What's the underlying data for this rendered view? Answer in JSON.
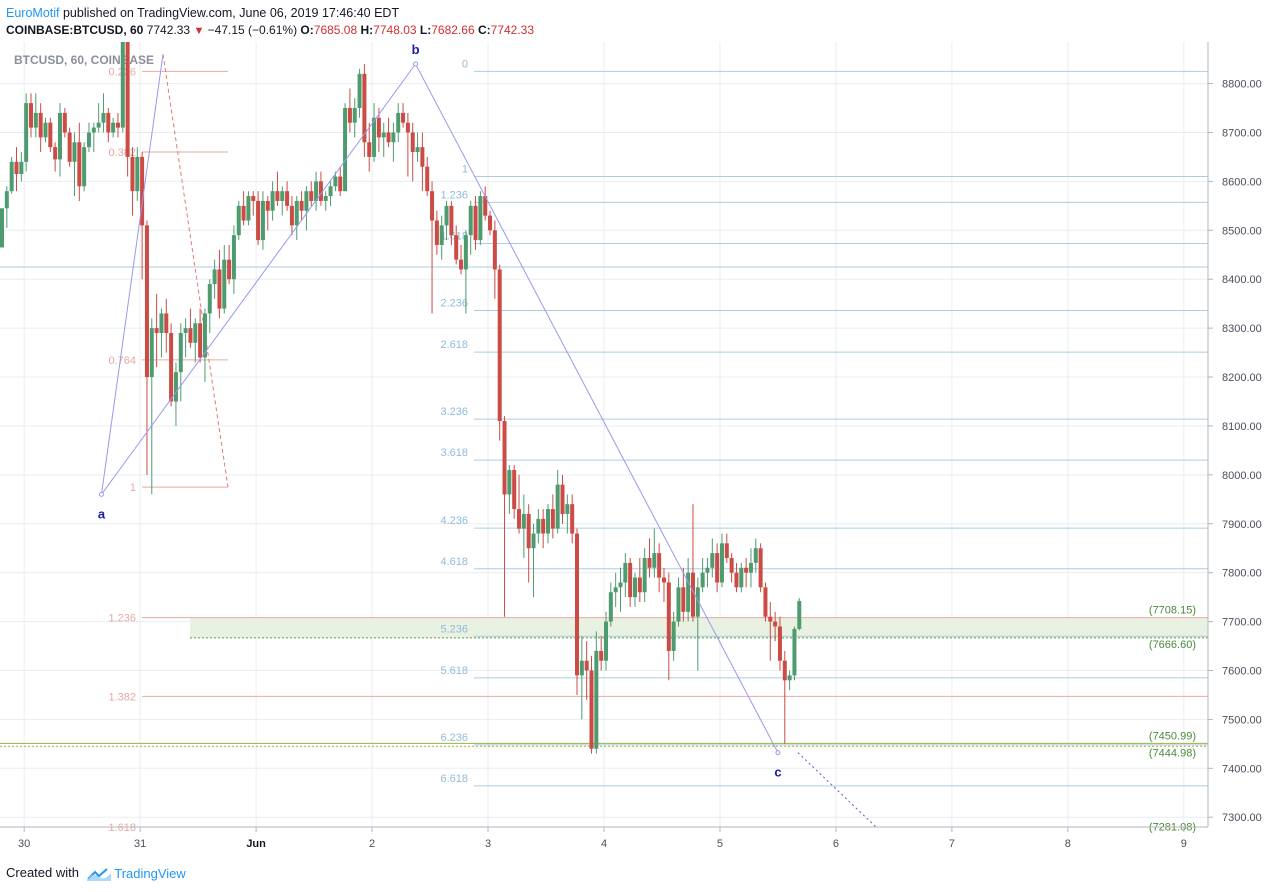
{
  "header": {
    "brand": "EuroMotif",
    "published": " published on TradingView.com, June 06, 2019 17:46:40 EDT",
    "symbol": "COINBASE:BTCUSD, 60",
    "last": "7742.33",
    "change": "−47.15 (−0.61%)",
    "open_label": "O:",
    "open": "7685.08",
    "high_label": "H:",
    "high": "7748.03",
    "low_label": "L:",
    "low": "7682.66",
    "close_label": "C:",
    "close": "7742.33",
    "down_arrow_icon": "triangle-down-icon"
  },
  "footer": {
    "created_with": "Created with",
    "brand": "TradingView",
    "logo_icon": "tradingview-logo-icon"
  },
  "colors": {
    "up": "#4f9b70",
    "down": "#cc4b44",
    "grid": "#e8edf2",
    "fib_blue": "#aecde0",
    "fib_red": "#e8a9a6",
    "wave": "#9999ee",
    "zone": "#e9f1e2",
    "zone_border": "#5e9c4f",
    "green_line": "#9bb33a",
    "label_blue": "#2196f3"
  },
  "chart_data": {
    "type": "candlestick",
    "watermark": "BTCUSD, 60, COINBASE",
    "price_axis": {
      "ticks": [
        "8800.00",
        "8700.00",
        "8600.00",
        "8500.00",
        "8400.00",
        "8300.00",
        "8200.00",
        "8100.00",
        "8000.00",
        "7900.00",
        "7800.00",
        "7700.00",
        "7600.00",
        "7500.00",
        "7400.00",
        "7300.00"
      ],
      "range": [
        7280,
        8885
      ]
    },
    "time_axis": {
      "ticks": [
        "30",
        "31",
        "Jun",
        "2",
        "3",
        "4",
        "5",
        "6",
        "7",
        "8",
        "9"
      ],
      "range": [
        "2019-05-29T19:00",
        "2019-06-09T05:00"
      ]
    },
    "price_labels": [
      "(7708.15)",
      "(7666.60)",
      "(7450.99)",
      "(7444.98)",
      "(7281.08)"
    ],
    "fib_extension_red": {
      "levels": [
        {
          "label": "0.236",
          "price": 8825
        },
        {
          "label": "0.382",
          "price": 8660
        },
        {
          "label": "0.764",
          "price": 8235
        },
        {
          "label": "1",
          "price": 7975
        },
        {
          "label": "1.236",
          "price": 7708
        },
        {
          "label": "1.382",
          "price": 7547
        },
        {
          "label": "1.618",
          "price": 7280
        }
      ]
    },
    "fib_extension_blue": {
      "levels": [
        {
          "label": "0",
          "price": 8825
        },
        {
          "label": "1",
          "price": 8610
        },
        {
          "label": "1.236",
          "price": 8557
        },
        {
          "label": "1.618",
          "price": 8473
        },
        {
          "label": "2.236",
          "price": 8336
        },
        {
          "label": "2.618",
          "price": 8251
        },
        {
          "label": "3.236",
          "price": 8114
        },
        {
          "label": "3.618",
          "price": 8030
        },
        {
          "label": "4.236",
          "price": 7891
        },
        {
          "label": "4.618",
          "price": 7808
        },
        {
          "label": "5.236",
          "price": 7670
        },
        {
          "label": "5.618",
          "price": 7585
        },
        {
          "label": "6.236",
          "price": 7448
        },
        {
          "label": "6.618",
          "price": 7364
        }
      ]
    },
    "horizontal_line_price": 8425,
    "zone": {
      "top": 7708.15,
      "bottom": 7666.6
    },
    "green_lines": [
      7450.99,
      7444.98
    ],
    "waves": [
      {
        "label": "a",
        "time": "2019-05-30T16:00",
        "price": 7960
      },
      {
        "label": "b",
        "time": "2019-06-02T09:00",
        "price": 8840
      },
      {
        "label": "c",
        "time": "2019-06-05T12:00",
        "price": 7432
      }
    ],
    "candles": [
      [
        8465,
        8545,
        8465,
        8545
      ],
      [
        8545,
        8590,
        8505,
        8580
      ],
      [
        8580,
        8650,
        8575,
        8640
      ],
      [
        8640,
        8670,
        8580,
        8615
      ],
      [
        8615,
        8660,
        8600,
        8640
      ],
      [
        8640,
        8780,
        8620,
        8760
      ],
      [
        8760,
        8780,
        8690,
        8710
      ],
      [
        8710,
        8780,
        8690,
        8740
      ],
      [
        8740,
        8760,
        8660,
        8690
      ],
      [
        8690,
        8730,
        8680,
        8720
      ],
      [
        8720,
        8730,
        8660,
        8670
      ],
      [
        8670,
        8680,
        8620,
        8645
      ],
      [
        8645,
        8760,
        8610,
        8740
      ],
      [
        8740,
        8750,
        8690,
        8700
      ],
      [
        8700,
        8710,
        8630,
        8640
      ],
      [
        8640,
        8700,
        8570,
        8680
      ],
      [
        8680,
        8720,
        8560,
        8590
      ],
      [
        8590,
        8680,
        8580,
        8670
      ],
      [
        8670,
        8720,
        8660,
        8700
      ],
      [
        8700,
        8720,
        8660,
        8710
      ],
      [
        8710,
        8760,
        8700,
        8720
      ],
      [
        8720,
        8780,
        8700,
        8740
      ],
      [
        8740,
        8750,
        8680,
        8700
      ],
      [
        8700,
        8730,
        8690,
        8720
      ],
      [
        8720,
        8740,
        8690,
        8710
      ],
      [
        8710,
        8900,
        8700,
        8890
      ],
      [
        8890,
        8900,
        8610,
        8650
      ],
      [
        8650,
        8670,
        8530,
        8580
      ],
      [
        8580,
        8670,
        8560,
        8650
      ],
      [
        8650,
        8660,
        8400,
        8510
      ],
      [
        8510,
        8520,
        8000,
        8200
      ],
      [
        8200,
        8320,
        7960,
        8300
      ],
      [
        8300,
        8370,
        8220,
        8290
      ],
      [
        8290,
        8340,
        8240,
        8330
      ],
      [
        8330,
        8360,
        8250,
        8290
      ],
      [
        8290,
        8310,
        8140,
        8150
      ],
      [
        8150,
        8230,
        8100,
        8210
      ],
      [
        8210,
        8310,
        8150,
        8290
      ],
      [
        8290,
        8320,
        8240,
        8300
      ],
      [
        8300,
        8340,
        8260,
        8270
      ],
      [
        8270,
        8320,
        8230,
        8310
      ],
      [
        8310,
        8340,
        8230,
        8240
      ],
      [
        8240,
        8340,
        8190,
        8330
      ],
      [
        8330,
        8400,
        8290,
        8390
      ],
      [
        8390,
        8440,
        8360,
        8420
      ],
      [
        8420,
        8460,
        8320,
        8340
      ],
      [
        8340,
        8470,
        8330,
        8440
      ],
      [
        8440,
        8470,
        8390,
        8400
      ],
      [
        8400,
        8510,
        8370,
        8490
      ],
      [
        8490,
        8560,
        8480,
        8550
      ],
      [
        8550,
        8580,
        8510,
        8520
      ],
      [
        8520,
        8580,
        8510,
        8570
      ],
      [
        8570,
        8580,
        8530,
        8560
      ],
      [
        8560,
        8580,
        8470,
        8480
      ],
      [
        8480,
        8580,
        8460,
        8560
      ],
      [
        8560,
        8570,
        8500,
        8540
      ],
      [
        8540,
        8600,
        8520,
        8580
      ],
      [
        8580,
        8620,
        8550,
        8560
      ],
      [
        8560,
        8590,
        8530,
        8580
      ],
      [
        8580,
        8600,
        8540,
        8550
      ],
      [
        8550,
        8570,
        8490,
        8510
      ],
      [
        8510,
        8570,
        8480,
        8560
      ],
      [
        8560,
        8580,
        8520,
        8540
      ],
      [
        8540,
        8590,
        8500,
        8580
      ],
      [
        8580,
        8600,
        8550,
        8560
      ],
      [
        8560,
        8620,
        8540,
        8600
      ],
      [
        8600,
        8620,
        8550,
        8560
      ],
      [
        8560,
        8580,
        8540,
        8570
      ],
      [
        8570,
        8600,
        8550,
        8590
      ],
      [
        8590,
        8620,
        8580,
        8610
      ],
      [
        8610,
        8630,
        8570,
        8580
      ],
      [
        8580,
        8760,
        8580,
        8750
      ],
      [
        8750,
        8790,
        8700,
        8720
      ],
      [
        8720,
        8770,
        8690,
        8750
      ],
      [
        8750,
        8830,
        8730,
        8820
      ],
      [
        8820,
        8840,
        8650,
        8680
      ],
      [
        8680,
        8720,
        8620,
        8650
      ],
      [
        8650,
        8760,
        8640,
        8730
      ],
      [
        8730,
        8750,
        8660,
        8690
      ],
      [
        8690,
        8720,
        8650,
        8700
      ],
      [
        8700,
        8730,
        8670,
        8680
      ],
      [
        8680,
        8720,
        8640,
        8700
      ],
      [
        8700,
        8760,
        8680,
        8740
      ],
      [
        8740,
        8760,
        8710,
        8720
      ],
      [
        8720,
        8740,
        8610,
        8700
      ],
      [
        8700,
        8720,
        8600,
        8660
      ],
      [
        8660,
        8700,
        8640,
        8670
      ],
      [
        8670,
        8700,
        8580,
        8630
      ],
      [
        8630,
        8650,
        8570,
        8580
      ],
      [
        8580,
        8600,
        8330,
        8520
      ],
      [
        8520,
        8540,
        8450,
        8470
      ],
      [
        8470,
        8530,
        8440,
        8510
      ],
      [
        8510,
        8560,
        8480,
        8550
      ],
      [
        8550,
        8560,
        8470,
        8490
      ],
      [
        8490,
        8510,
        8430,
        8440
      ],
      [
        8440,
        8470,
        8410,
        8420
      ],
      [
        8420,
        8500,
        8330,
        8490
      ],
      [
        8490,
        8560,
        8450,
        8550
      ],
      [
        8550,
        8570,
        8460,
        8480
      ],
      [
        8480,
        8580,
        8470,
        8570
      ],
      [
        8570,
        8590,
        8520,
        8530
      ],
      [
        8530,
        8540,
        8490,
        8500
      ],
      [
        8500,
        8520,
        8360,
        8420
      ],
      [
        8420,
        8430,
        8070,
        8110
      ],
      [
        8110,
        8120,
        7710,
        7960
      ],
      [
        7960,
        8020,
        7920,
        8010
      ],
      [
        8010,
        8020,
        7910,
        7930
      ],
      [
        7930,
        8000,
        7880,
        7890
      ],
      [
        7890,
        7960,
        7830,
        7920
      ],
      [
        7920,
        7940,
        7780,
        7850
      ],
      [
        7850,
        7900,
        7750,
        7880
      ],
      [
        7880,
        7930,
        7860,
        7910
      ],
      [
        7910,
        7930,
        7850,
        7880
      ],
      [
        7880,
        7940,
        7860,
        7930
      ],
      [
        7930,
        7960,
        7870,
        7890
      ],
      [
        7890,
        8010,
        7880,
        7980
      ],
      [
        7980,
        8000,
        7900,
        7920
      ],
      [
        7920,
        7960,
        7880,
        7940
      ],
      [
        7940,
        7960,
        7860,
        7880
      ],
      [
        7880,
        7890,
        7550,
        7590
      ],
      [
        7590,
        7670,
        7500,
        7620
      ],
      [
        7620,
        7660,
        7540,
        7600
      ],
      [
        7600,
        7630,
        7430,
        7440
      ],
      [
        7440,
        7680,
        7430,
        7640
      ],
      [
        7640,
        7670,
        7600,
        7620
      ],
      [
        7620,
        7720,
        7600,
        7700
      ],
      [
        7700,
        7780,
        7690,
        7760
      ],
      [
        7760,
        7800,
        7730,
        7770
      ],
      [
        7770,
        7810,
        7720,
        7780
      ],
      [
        7780,
        7840,
        7750,
        7820
      ],
      [
        7820,
        7830,
        7730,
        7750
      ],
      [
        7750,
        7800,
        7730,
        7790
      ],
      [
        7790,
        7830,
        7740,
        7760
      ],
      [
        7760,
        7850,
        7740,
        7830
      ],
      [
        7830,
        7870,
        7790,
        7810
      ],
      [
        7810,
        7890,
        7790,
        7840
      ],
      [
        7840,
        7860,
        7760,
        7790
      ],
      [
        7790,
        7810,
        7740,
        7780
      ],
      [
        7780,
        7800,
        7580,
        7640
      ],
      [
        7640,
        7720,
        7620,
        7700
      ],
      [
        7700,
        7790,
        7690,
        7770
      ],
      [
        7770,
        7810,
        7700,
        7720
      ],
      [
        7720,
        7830,
        7700,
        7800
      ],
      [
        7800,
        7940,
        7700,
        7710
      ],
      [
        7710,
        7790,
        7600,
        7770
      ],
      [
        7770,
        7830,
        7760,
        7800
      ],
      [
        7800,
        7830,
        7770,
        7810
      ],
      [
        7810,
        7870,
        7790,
        7840
      ],
      [
        7840,
        7860,
        7760,
        7780
      ],
      [
        7780,
        7880,
        7770,
        7860
      ],
      [
        7860,
        7880,
        7820,
        7830
      ],
      [
        7830,
        7840,
        7780,
        7800
      ],
      [
        7800,
        7820,
        7760,
        7770
      ],
      [
        7770,
        7820,
        7760,
        7810
      ],
      [
        7810,
        7830,
        7770,
        7800
      ],
      [
        7800,
        7850,
        7770,
        7820
      ],
      [
        7820,
        7870,
        7800,
        7850
      ],
      [
        7850,
        7860,
        7760,
        7770
      ],
      [
        7770,
        7780,
        7700,
        7710
      ],
      [
        7710,
        7740,
        7620,
        7700
      ],
      [
        7700,
        7720,
        7660,
        7690
      ],
      [
        7690,
        7710,
        7600,
        7620
      ],
      [
        7620,
        7640,
        7450,
        7580
      ],
      [
        7580,
        7600,
        7560,
        7590
      ],
      [
        7590,
        7690,
        7580,
        7685
      ],
      [
        7685,
        7748,
        7682,
        7742
      ]
    ],
    "candles_format": "[open, high, low, close] per 60-minute bar, oldest first"
  }
}
